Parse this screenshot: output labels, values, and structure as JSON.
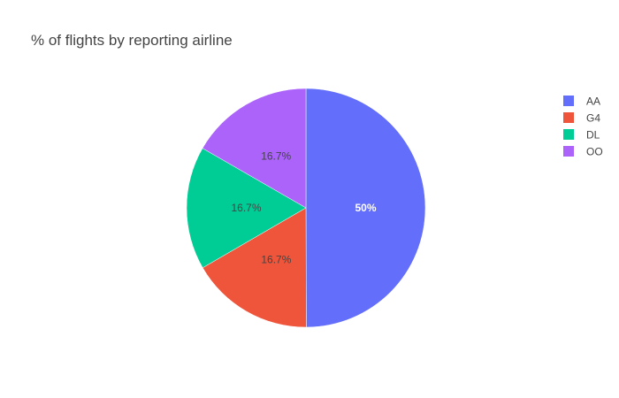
{
  "chart_data": {
    "type": "pie",
    "title": "% of flights by reporting airline",
    "slices": [
      {
        "label": "AA",
        "value": 50,
        "display": "50%",
        "color": "#636efa",
        "text_color": "#ffffff"
      },
      {
        "label": "G4",
        "value": 16.7,
        "display": "16.7%",
        "color": "#ef553b",
        "text_color": "#444444"
      },
      {
        "label": "DL",
        "value": 16.7,
        "display": "16.7%",
        "color": "#00cc96",
        "text_color": "#444444"
      },
      {
        "label": "OO",
        "value": 16.7,
        "display": "16.7%",
        "color": "#ab63fa",
        "text_color": "#444444"
      }
    ],
    "legend": {
      "placement": "top-right"
    },
    "direction": "clockwise"
  }
}
